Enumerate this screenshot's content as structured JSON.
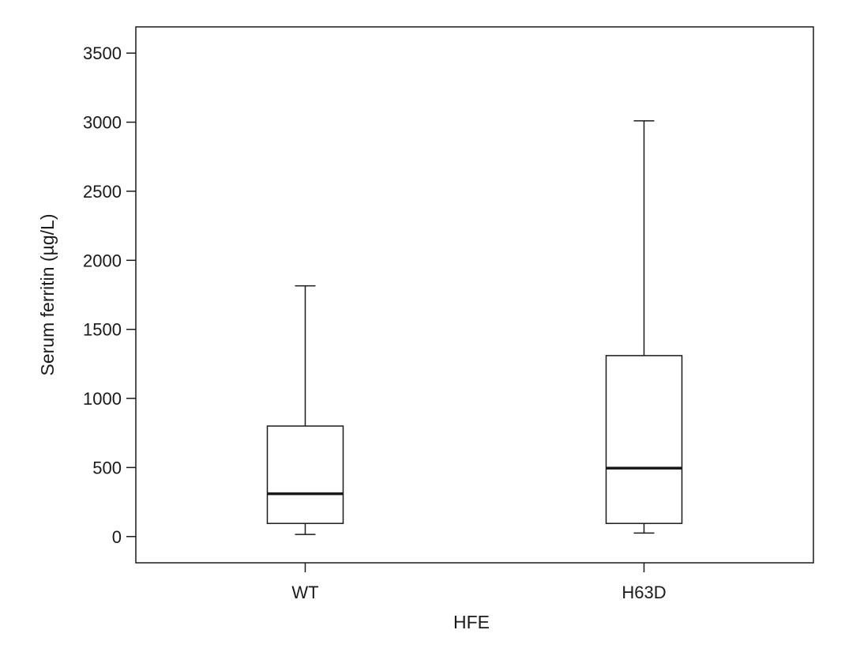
{
  "chart_data": {
    "type": "box",
    "title": "",
    "xlabel": "HFE",
    "ylabel": "Serum ferritin (µg/L)",
    "ylim": [
      -190,
      3690
    ],
    "yticks": [
      0,
      500,
      1000,
      1500,
      2000,
      2500,
      3000,
      3500
    ],
    "ytick_labels": [
      "0",
      "500",
      "1000",
      "1500",
      "2000",
      "2500",
      "3000",
      "3500"
    ],
    "grid": false,
    "legend": "none",
    "categories": [
      "WT",
      "H63D"
    ],
    "boxes": [
      {
        "category": "WT",
        "whisker_low": 15,
        "q1": 95,
        "median": 310,
        "q3": 800,
        "whisker_high": 1815
      },
      {
        "category": "H63D",
        "whisker_low": 25,
        "q1": 95,
        "median": 495,
        "q3": 1310,
        "whisker_high": 3010
      }
    ],
    "colors": {
      "line": "#1a1a1a",
      "box_fill": "#ffffff"
    }
  }
}
